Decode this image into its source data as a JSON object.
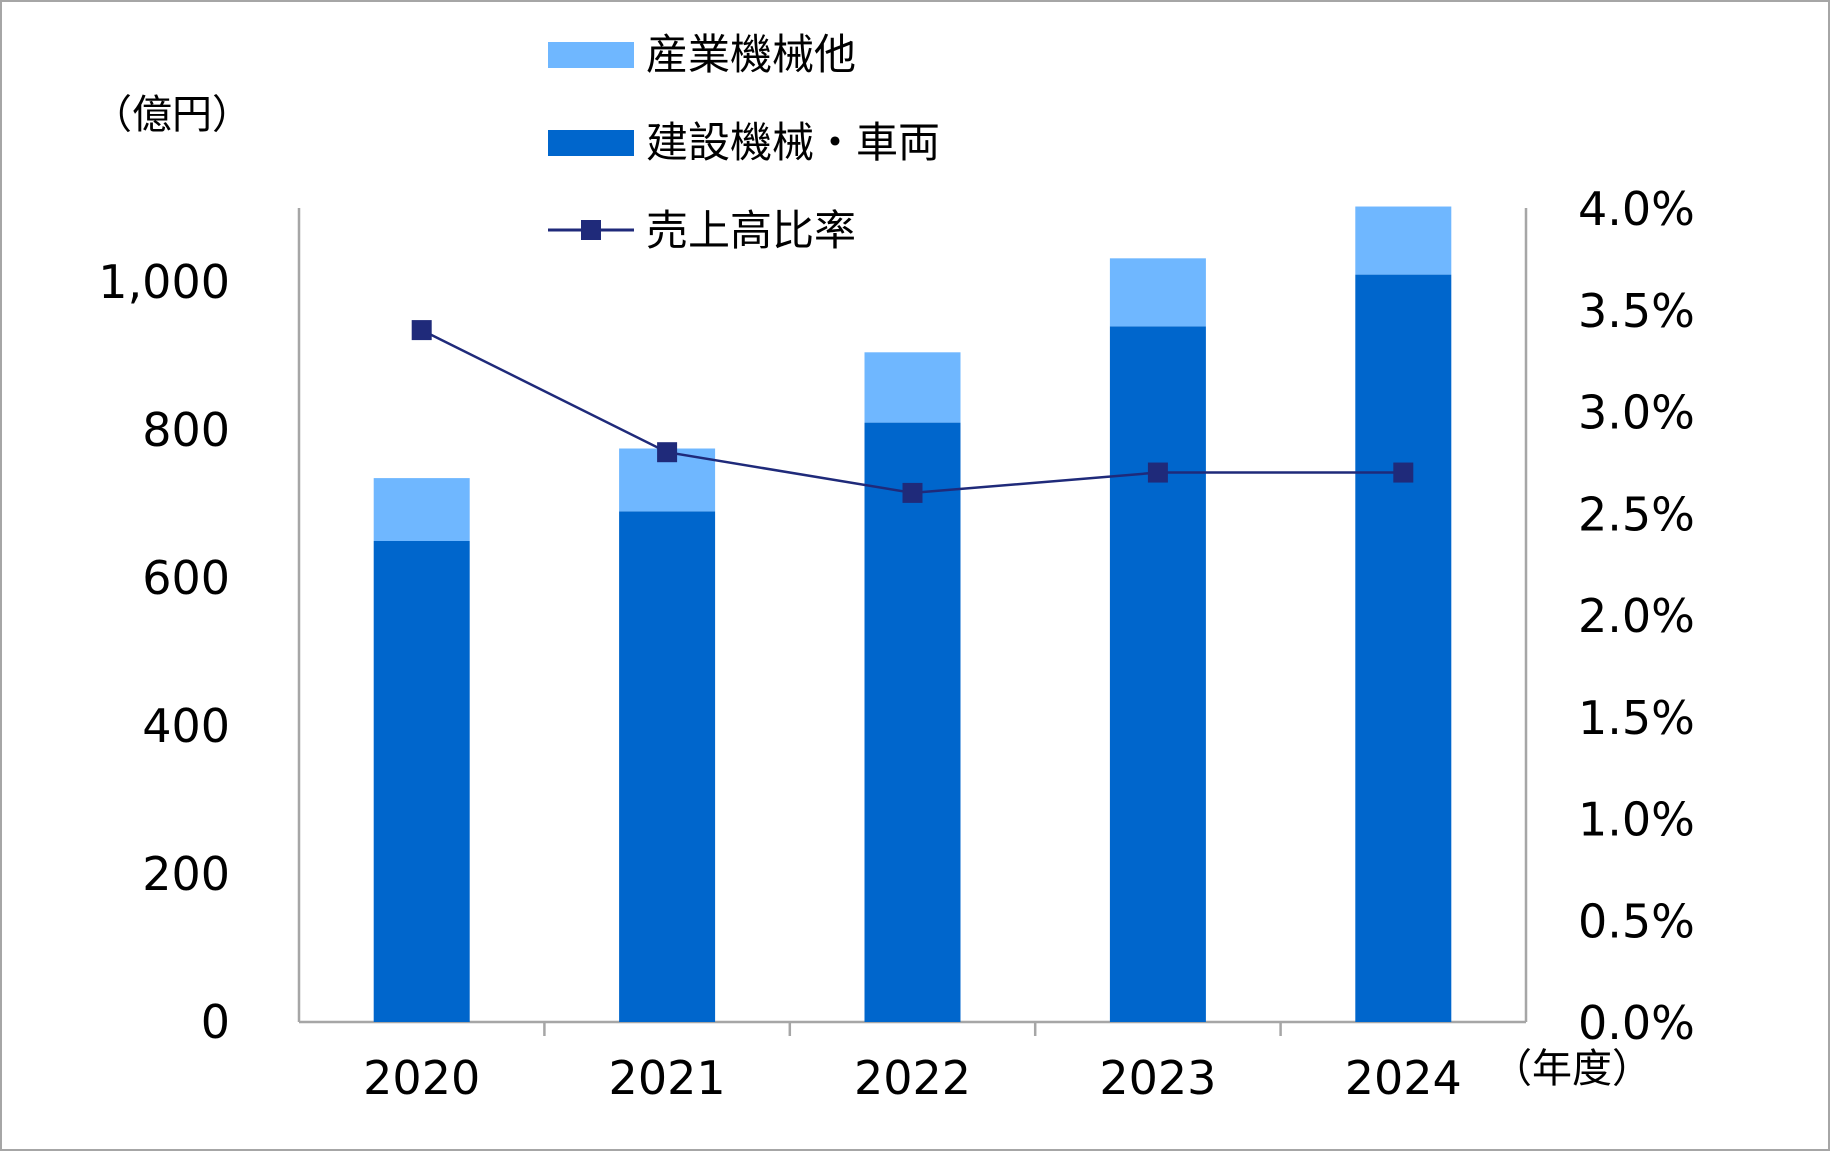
{
  "chart_data": {
    "type": "bar",
    "stacked": true,
    "categories": [
      "2020",
      "2021",
      "2022",
      "2023",
      "2024"
    ],
    "series": [
      {
        "name": "建設機械・車両",
        "type": "bar",
        "axis": "left",
        "color": "#0066cc",
        "values": [
          650,
          690,
          810,
          940,
          1010
        ]
      },
      {
        "name": "産業機械他",
        "type": "bar",
        "axis": "left",
        "color": "#6fb7ff",
        "values": [
          85,
          85,
          95,
          92,
          92
        ]
      },
      {
        "name": "売上高比率",
        "type": "line",
        "axis": "right",
        "color": "#1f2a7a",
        "marker": "square",
        "values": [
          3.4,
          2.8,
          2.6,
          2.7,
          2.7
        ]
      }
    ],
    "y_left": {
      "unit_label": "（億円）",
      "ticks": [
        "0",
        "200",
        "400",
        "600",
        "800",
        "1,000"
      ],
      "range": [
        0,
        1100
      ]
    },
    "y_right": {
      "ticks": [
        "0.0%",
        "0.5%",
        "1.0%",
        "1.5%",
        "2.0%",
        "2.5%",
        "3.0%",
        "3.5%",
        "4.0%"
      ],
      "range": [
        0,
        4.0
      ]
    },
    "x_unit_label": "（年度）",
    "legend": {
      "placement": "top-center",
      "items": [
        {
          "label": "産業機械他",
          "kind": "bar",
          "color": "#6fb7ff"
        },
        {
          "label": "建設機械・車両",
          "kind": "bar",
          "color": "#0066cc"
        },
        {
          "label": "売上高比率",
          "kind": "line",
          "color": "#1f2a7a"
        }
      ]
    },
    "grid": false,
    "colors": {
      "axis": "#a6a6a6",
      "frame": "#a6a6a6"
    }
  }
}
